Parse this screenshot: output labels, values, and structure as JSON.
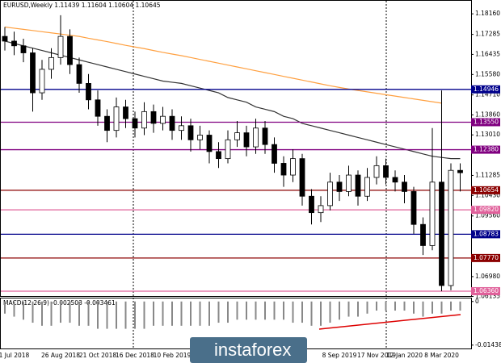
{
  "chart_data": {
    "type": "candlestick",
    "title": "EURUSD,Weekly 1.11439 1.11604 1.10604 1.10645",
    "categories": [
      null,
      "1 Jul 2018",
      null,
      null,
      null,
      null,
      "26 Aug 2018",
      null,
      null,
      null,
      "21 Oct 2018",
      null,
      null,
      null,
      "16 Dec 2018",
      null,
      null,
      null,
      "10 Feb 2019",
      null,
      null,
      null,
      null,
      null,
      null,
      null,
      null,
      null,
      null,
      null,
      null,
      null,
      null,
      null,
      null,
      null,
      "8 Sep 2019",
      null,
      null,
      null,
      "17 Nov 2019",
      null,
      null,
      "12 Jan 2020",
      null,
      null,
      null,
      "8 Mar 2020",
      null,
      null
    ],
    "open": [
      1.172,
      1.17,
      1.168,
      1.165,
      1.148,
      1.158,
      1.163,
      1.172,
      1.16,
      1.152,
      1.145,
      1.138,
      1.132,
      1.142,
      1.137,
      1.133,
      1.14,
      1.135,
      1.138,
      1.132,
      1.134,
      1.128,
      1.13,
      1.123,
      1.12,
      1.128,
      1.131,
      1.125,
      1.133,
      1.126,
      1.118,
      1.113,
      1.12,
      1.104,
      1.097,
      1.1,
      1.11,
      1.106,
      1.113,
      1.104,
      1.112,
      1.117,
      1.112,
      1.11,
      1.106,
      1.092,
      1.083,
      1.11,
      1.066,
      1.115
    ],
    "high": [
      1.176,
      1.174,
      1.171,
      1.167,
      1.162,
      1.167,
      1.181,
      1.175,
      1.163,
      1.156,
      1.149,
      1.141,
      1.146,
      1.145,
      1.14,
      1.144,
      1.143,
      1.142,
      1.141,
      1.138,
      1.137,
      1.134,
      1.132,
      1.127,
      1.132,
      1.136,
      1.134,
      1.137,
      1.136,
      1.129,
      1.121,
      1.124,
      1.122,
      1.107,
      1.104,
      1.114,
      1.113,
      1.117,
      1.115,
      1.116,
      1.121,
      1.12,
      1.115,
      1.113,
      1.108,
      1.095,
      1.133,
      1.149,
      1.118,
      1.118
    ],
    "low": [
      1.166,
      1.164,
      1.161,
      1.14,
      1.145,
      1.154,
      1.16,
      1.156,
      1.148,
      1.141,
      1.134,
      1.127,
      1.129,
      1.133,
      1.129,
      1.13,
      1.131,
      1.132,
      1.128,
      1.128,
      1.123,
      1.124,
      1.118,
      1.116,
      1.118,
      1.125,
      1.121,
      1.122,
      1.122,
      1.114,
      1.108,
      1.11,
      1.1,
      1.092,
      1.093,
      1.098,
      1.102,
      1.104,
      1.1,
      1.102,
      1.109,
      1.109,
      1.106,
      1.101,
      1.088,
      1.079,
      1.081,
      1.0636,
      1.064,
      1.106
    ],
    "close": [
      1.17,
      1.168,
      1.165,
      1.148,
      1.158,
      1.163,
      1.172,
      1.16,
      1.152,
      1.145,
      1.138,
      1.132,
      1.142,
      1.137,
      1.133,
      1.14,
      1.135,
      1.138,
      1.132,
      1.134,
      1.128,
      1.13,
      1.123,
      1.12,
      1.128,
      1.131,
      1.125,
      1.133,
      1.126,
      1.118,
      1.113,
      1.12,
      1.104,
      1.097,
      1.1,
      1.11,
      1.106,
      1.113,
      1.104,
      1.112,
      1.117,
      1.112,
      1.11,
      1.106,
      1.092,
      1.083,
      1.11,
      1.066,
      1.115,
      1.114
    ],
    "series": [
      {
        "color": "#ffa040",
        "values": [
          1.176,
          1.1755,
          1.175,
          1.1745,
          1.174,
          1.1735,
          1.173,
          1.1725,
          1.172,
          1.1712,
          1.1705,
          1.1698,
          1.169,
          1.1682,
          1.1675,
          1.1668,
          1.166,
          1.1652,
          1.1645,
          1.1638,
          1.163,
          1.1622,
          1.1614,
          1.1606,
          1.1598,
          1.159,
          1.1582,
          1.1574,
          1.1566,
          1.1558,
          1.155,
          1.1542,
          1.1534,
          1.1526,
          1.1518,
          1.151,
          1.1503,
          1.1496,
          1.149,
          1.1484,
          1.1478,
          1.1472,
          1.1466,
          1.146,
          1.1454,
          1.1448,
          1.1442,
          1.1436,
          null,
          null
        ]
      },
      {
        "color": "#333333",
        "values": [
          1.17,
          1.169,
          1.168,
          1.167,
          1.166,
          1.165,
          1.164,
          1.163,
          1.162,
          1.161,
          1.16,
          1.159,
          1.158,
          1.157,
          1.156,
          1.155,
          1.154,
          1.153,
          1.1525,
          1.152,
          1.151,
          1.15,
          1.149,
          1.148,
          1.146,
          1.145,
          1.144,
          1.142,
          1.141,
          1.14,
          1.138,
          1.137,
          1.135,
          1.134,
          1.133,
          1.132,
          1.131,
          1.13,
          1.129,
          1.128,
          1.127,
          1.126,
          1.125,
          1.124,
          1.123,
          1.122,
          1.121,
          1.1205,
          1.12,
          1.12
        ]
      }
    ],
    "ylim": [
      1.0605,
      1.1868
    ],
    "yticks": [
      {
        "value": 1.1816,
        "label": "1.18160"
      },
      {
        "value": 1.17285,
        "label": "1.17285"
      },
      {
        "value": 1.16435,
        "label": "1.16435"
      },
      {
        "value": 1.1558,
        "label": "1.15580"
      },
      {
        "value": 1.1471,
        "label": "1.14710"
      },
      {
        "value": 1.1386,
        "label": "1.13860"
      },
      {
        "value": 1.1301,
        "label": "1.13010"
      },
      {
        "value": 1.11285,
        "label": "1.11285"
      },
      {
        "value": 1.1043,
        "label": "1.10430"
      },
      {
        "value": 1.0956,
        "label": "1.09560"
      },
      {
        "value": 1.0698,
        "label": "1.06980"
      },
      {
        "value": 1.06135,
        "label": "1.06135"
      }
    ],
    "levels": [
      {
        "value": 1.14946,
        "label": "1.14946",
        "color": "#00008b"
      },
      {
        "value": 1.1355,
        "label": "1.13550",
        "color": "#800080"
      },
      {
        "value": 1.1238,
        "label": "1.12380",
        "color": "#800080"
      },
      {
        "value": 1.10654,
        "label": "1.10654",
        "color": "#8b0000"
      },
      {
        "value": 1.0982,
        "label": "1.09820",
        "color": "#e0609a"
      },
      {
        "value": 1.08783,
        "label": "1.08783",
        "color": "#00008b"
      },
      {
        "value": 1.0777,
        "label": "1.07770",
        "color": "#8b0000"
      },
      {
        "value": 1.0636,
        "label": "1.06360",
        "color": "#e0609a"
      }
    ],
    "macd": {
      "label": "MACD(12,26,9) -0.002503 -0.003461",
      "ylim": [
        -0.0155,
        0.001
      ],
      "yticks": [
        0,
        -0.014389
      ],
      "values": [
        -0.004,
        -0.005,
        -0.006,
        -0.007,
        -0.008,
        -0.008,
        -0.007,
        -0.007,
        -0.008,
        -0.008,
        -0.009,
        -0.009,
        -0.009,
        -0.009,
        -0.009,
        -0.009,
        -0.008,
        -0.008,
        -0.008,
        -0.008,
        -0.008,
        -0.008,
        -0.008,
        -0.007,
        -0.007,
        -0.006,
        -0.006,
        -0.006,
        -0.006,
        -0.006,
        -0.006,
        -0.007,
        -0.007,
        -0.008,
        -0.008,
        -0.007,
        -0.006,
        -0.005,
        -0.005,
        -0.004,
        -0.003,
        -0.003,
        -0.003,
        -0.003,
        -0.004,
        -0.005,
        -0.004,
        -0.004,
        -0.003,
        -0.003
      ]
    },
    "watermark": "instaforex"
  }
}
